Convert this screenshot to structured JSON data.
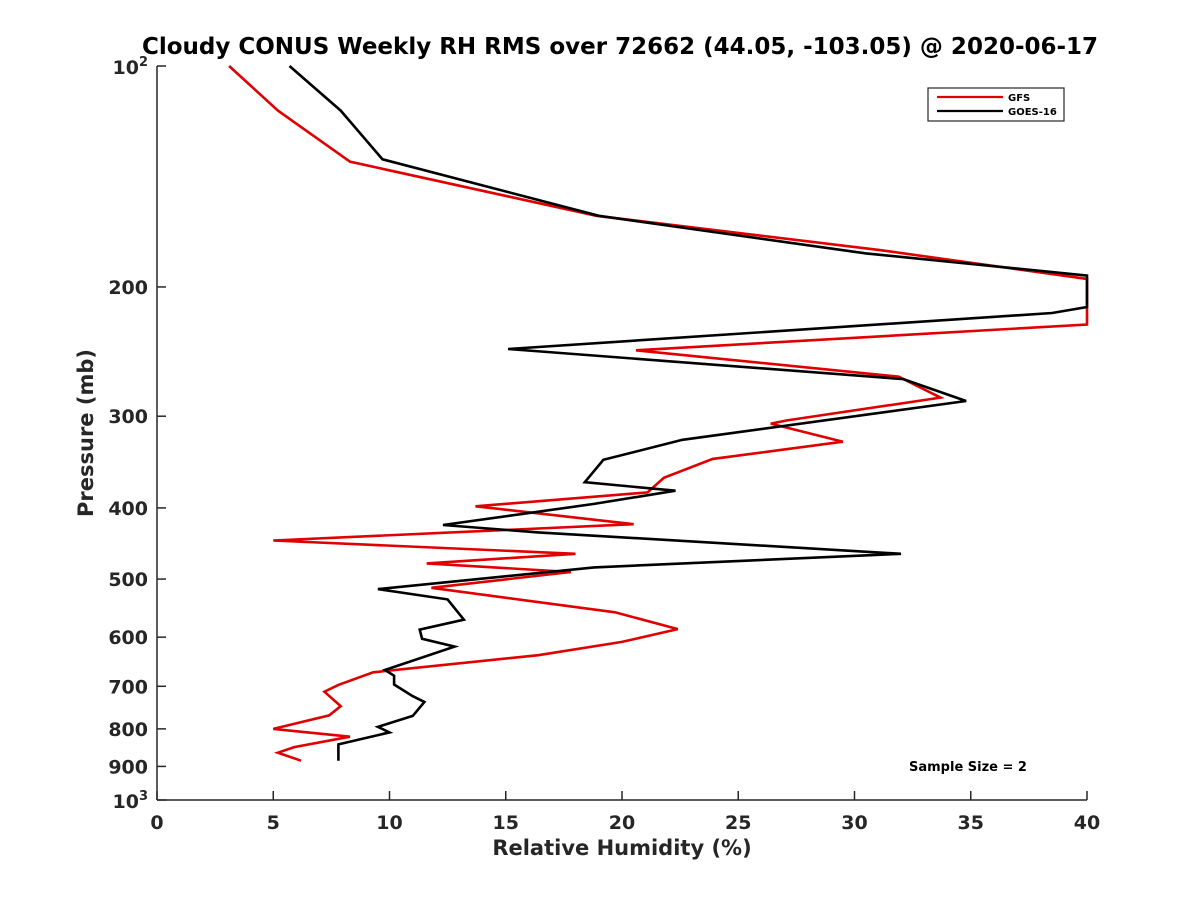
{
  "chart_data": {
    "type": "line",
    "title": "Cloudy CONUS Weekly RH RMS over 72662 (44.05, -103.05) @ 2020-06-17",
    "xlabel": "Relative Humidity (%)",
    "ylabel": "Pressure (mb)",
    "xlim": [
      0,
      40
    ],
    "ylim": [
      100,
      1000
    ],
    "y_scale": "log",
    "y_reversed": true,
    "x_ticks": [
      "0",
      "5",
      "10",
      "15",
      "20",
      "25",
      "30",
      "35",
      "40"
    ],
    "y_tick_labels": {
      "top_base": "10",
      "top_exp": "2",
      "bottom_base": "10",
      "bottom_exp": "3",
      "mid": [
        "200",
        "300",
        "400",
        "500",
        "600",
        "700",
        "800",
        "900"
      ]
    },
    "grid": false,
    "legend_position": "top-right",
    "annotation": "Sample Size = 2",
    "series": [
      {
        "name": "GFS",
        "color": "#e00000",
        "x": [
          3.1,
          5.2,
          8.3,
          18.9,
          31.0,
          40.0,
          40.0,
          20.6,
          31.9,
          33.7,
          27.1,
          26.4,
          29.5,
          23.9,
          21.8,
          21.1,
          13.7,
          20.5,
          5.0,
          18.0,
          11.6,
          17.8,
          11.8,
          19.7,
          22.4,
          20.0,
          16.4,
          9.3,
          7.8,
          7.2,
          7.9,
          7.4,
          5.0,
          8.3,
          5.9,
          5.2,
          6.2
        ],
        "y": [
          100,
          115,
          135,
          160,
          178,
          195,
          225,
          244,
          265,
          283,
          304,
          307,
          325,
          343,
          364,
          381,
          398,
          421,
          443,
          462,
          476,
          489,
          514,
          555,
          585,
          609,
          635,
          670,
          697,
          712,
          745,
          767,
          800,
          820,
          847,
          862,
          884
        ]
      },
      {
        "name": "GOES-16",
        "color": "#000000",
        "x": [
          5.7,
          7.9,
          9.7,
          19.0,
          30.5,
          40.0,
          40.0,
          38.5,
          15.1,
          32.1,
          34.8,
          22.6,
          19.2,
          18.4,
          22.3,
          18.8,
          12.3,
          16.4,
          32.0,
          18.8,
          9.5,
          12.5,
          13.2,
          11.3,
          11.4,
          12.8,
          9.8,
          10.2,
          10.2,
          11.0,
          11.5,
          11.0,
          9.5,
          10.0,
          7.8,
          7.8
        ],
        "y": [
          100,
          115,
          134,
          160,
          180,
          193,
          213,
          217,
          243,
          267,
          286,
          323,
          344,
          369,
          379,
          395,
          422,
          432,
          462,
          482,
          516,
          533,
          568,
          586,
          603,
          618,
          665,
          677,
          696,
          722,
          735,
          768,
          795,
          809,
          840,
          884
        ]
      }
    ]
  }
}
